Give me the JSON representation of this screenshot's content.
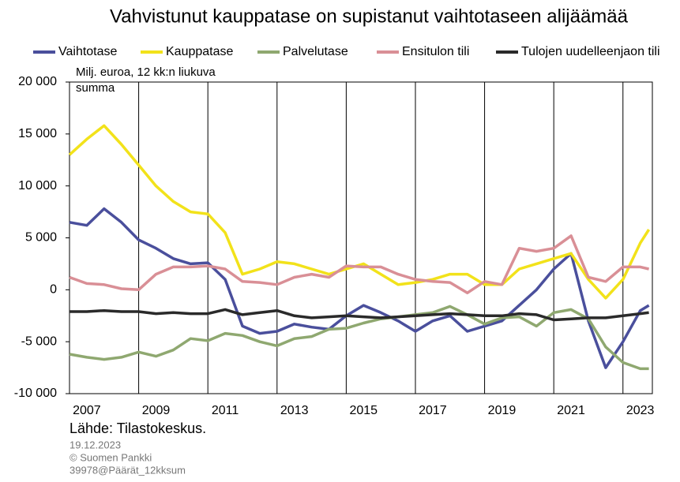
{
  "chart_data": {
    "type": "line",
    "title": "Vahvistunut kauppatase on supistanut vaihtotaseen alijäämää",
    "annotation": [
      "Milj. euroa, 12 kk:n liukuva",
      "summa"
    ],
    "source": "Lähde: Tilastokeskus.",
    "footer": [
      "19.12.2023",
      "© Suomen Pankki",
      "39978@Päärät_12kksum"
    ],
    "x": [
      2007.0,
      2007.5,
      2008.0,
      2008.5,
      2009.0,
      2009.5,
      2010.0,
      2010.5,
      2011.0,
      2011.5,
      2012.0,
      2012.5,
      2013.0,
      2013.5,
      2014.0,
      2014.5,
      2015.0,
      2015.5,
      2016.0,
      2016.5,
      2017.0,
      2017.5,
      2018.0,
      2018.5,
      2019.0,
      2019.5,
      2020.0,
      2020.5,
      2021.0,
      2021.5,
      2022.0,
      2022.5,
      2023.0,
      2023.5,
      2023.75
    ],
    "series": [
      {
        "name": "Vaihtotase",
        "color": "#4a4f9c",
        "values": [
          6500,
          6200,
          7800,
          6500,
          4800,
          4000,
          3000,
          2500,
          2600,
          1000,
          -3500,
          -4200,
          -4000,
          -3300,
          -3600,
          -3800,
          -2500,
          -1500,
          -2200,
          -3000,
          -4000,
          -3000,
          -2500,
          -4000,
          -3500,
          -3000,
          -1500,
          0,
          2000,
          3500,
          -3000,
          -7500,
          -5000,
          -2000,
          -1500
        ]
      },
      {
        "name": "Kauppatase",
        "color": "#f2e21a",
        "values": [
          13000,
          14500,
          15800,
          14000,
          12000,
          10000,
          8500,
          7500,
          7300,
          5500,
          1500,
          2000,
          2700,
          2500,
          2000,
          1500,
          2000,
          2500,
          1500,
          500,
          700,
          1000,
          1500,
          1500,
          500,
          500,
          2000,
          2500,
          3000,
          3500,
          1000,
          -800,
          1000,
          4500,
          5800
        ]
      },
      {
        "name": "Palvelutase",
        "color": "#8fa870",
        "values": [
          -6200,
          -6500,
          -6700,
          -6500,
          -6000,
          -6400,
          -5800,
          -4700,
          -4900,
          -4200,
          -4400,
          -5000,
          -5400,
          -4700,
          -4500,
          -3800,
          -3700,
          -3200,
          -2800,
          -2600,
          -2400,
          -2200,
          -1600,
          -2400,
          -3300,
          -2700,
          -2600,
          -3500,
          -2200,
          -1900,
          -2800,
          -5500,
          -7000,
          -7600,
          -7600
        ]
      },
      {
        "name": "Ensitulon tili",
        "color": "#d98f96",
        "values": [
          1200,
          600,
          500,
          100,
          0,
          1500,
          2200,
          2200,
          2300,
          2000,
          800,
          700,
          500,
          1200,
          1500,
          1200,
          2300,
          2200,
          2200,
          1500,
          1000,
          800,
          700,
          -300,
          800,
          500,
          4000,
          3700,
          4000,
          5200,
          1200,
          800,
          2200,
          2200,
          2000
        ]
      },
      {
        "name": "Tulojen uudelleenjaon tili",
        "color": "#2a2a2a",
        "values": [
          -2100,
          -2100,
          -2000,
          -2100,
          -2100,
          -2300,
          -2200,
          -2300,
          -2300,
          -1900,
          -2400,
          -2200,
          -2000,
          -2500,
          -2700,
          -2600,
          -2500,
          -2600,
          -2700,
          -2600,
          -2500,
          -2400,
          -2300,
          -2400,
          -2500,
          -2500,
          -2300,
          -2400,
          -2900,
          -2800,
          -2700,
          -2700,
          -2500,
          -2300,
          -2200
        ]
      }
    ],
    "xlim": [
      2007,
      2023.85
    ],
    "xticks": [
      2007,
      2009,
      2011,
      2013,
      2015,
      2017,
      2019,
      2021,
      2023
    ],
    "ylim": [
      -10000,
      20000
    ],
    "yticks": [
      {
        "value": -10000,
        "label": "-10 000"
      },
      {
        "value": -5000,
        "label": "-5 000"
      },
      {
        "value": 0,
        "label": "0"
      },
      {
        "value": 5000,
        "label": "5 000"
      },
      {
        "value": 10000,
        "label": "10 000"
      },
      {
        "value": 15000,
        "label": "15 000"
      },
      {
        "value": 20000,
        "label": "20 000"
      }
    ],
    "grid": "x"
  }
}
